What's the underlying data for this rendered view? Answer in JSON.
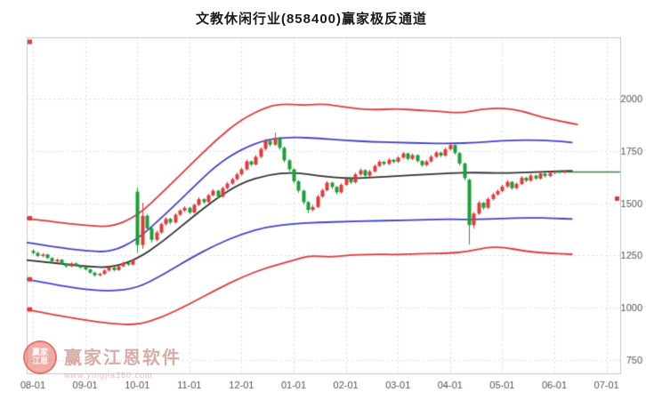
{
  "title": "文教休闲行业(858400)赢家极反通道",
  "watermark": {
    "logo_top": "赢家",
    "logo_bottom": "江恩",
    "brand": "赢家江恩软件",
    "url": "www.yingjia360.com"
  },
  "chart_data": {
    "type": "candlestick",
    "title": "文教休闲行业(858400)赢家极反通道",
    "xlabel": "",
    "ylabel": "",
    "y_axis_side": "right",
    "grid": true,
    "x_ticks": [
      "08-01",
      "09-01",
      "10-01",
      "11-01",
      "12-01",
      "01-01",
      "02-01",
      "03-01",
      "04-01",
      "05-01",
      "06-01",
      "07-01"
    ],
    "y_ticks": [
      2000,
      1750,
      1500,
      1250,
      1000,
      750
    ],
    "ylim": [
      686,
      2293
    ],
    "candles_per_month": 11,
    "candles": [
      [
        1272,
        1280,
        1255,
        1262
      ],
      [
        1262,
        1268,
        1242,
        1248
      ],
      [
        1248,
        1262,
        1243,
        1255
      ],
      [
        1255,
        1258,
        1232,
        1238
      ],
      [
        1238,
        1242,
        1216,
        1222
      ],
      [
        1222,
        1236,
        1217,
        1230
      ],
      [
        1230,
        1233,
        1205,
        1210
      ],
      [
        1210,
        1214,
        1192,
        1198
      ],
      [
        1198,
        1218,
        1194,
        1212
      ],
      [
        1212,
        1216,
        1196,
        1202
      ],
      [
        1202,
        1206,
        1186,
        1192
      ],
      [
        1192,
        1196,
        1177,
        1183
      ],
      [
        1183,
        1187,
        1162,
        1168
      ],
      [
        1168,
        1172,
        1148,
        1155
      ],
      [
        1155,
        1168,
        1150,
        1162
      ],
      [
        1162,
        1184,
        1158,
        1178
      ],
      [
        1178,
        1198,
        1174,
        1192
      ],
      [
        1192,
        1196,
        1174,
        1180
      ],
      [
        1180,
        1204,
        1176,
        1198
      ],
      [
        1198,
        1220,
        1194,
        1214
      ],
      [
        1214,
        1219,
        1200,
        1206
      ],
      [
        1206,
        1234,
        1202,
        1228
      ],
      [
        1555,
        1575,
        1262,
        1300
      ],
      [
        1300,
        1502,
        1282,
        1440
      ],
      [
        1440,
        1448,
        1366,
        1380
      ],
      [
        1380,
        1386,
        1312,
        1325
      ],
      [
        1325,
        1370,
        1318,
        1360
      ],
      [
        1360,
        1408,
        1352,
        1400
      ],
      [
        1400,
        1433,
        1393,
        1425
      ],
      [
        1425,
        1430,
        1398,
        1408
      ],
      [
        1408,
        1452,
        1402,
        1445
      ],
      [
        1445,
        1472,
        1438,
        1465
      ],
      [
        1465,
        1486,
        1458,
        1478
      ],
      [
        1478,
        1482,
        1448,
        1455
      ],
      [
        1455,
        1499,
        1450,
        1492
      ],
      [
        1492,
        1528,
        1486,
        1520
      ],
      [
        1520,
        1524,
        1497,
        1505
      ],
      [
        1505,
        1545,
        1500,
        1538
      ],
      [
        1538,
        1568,
        1532,
        1560
      ],
      [
        1560,
        1564,
        1524,
        1532
      ],
      [
        1532,
        1580,
        1526,
        1572
      ],
      [
        1572,
        1602,
        1566,
        1594
      ],
      [
        1594,
        1623,
        1588,
        1615
      ],
      [
        1615,
        1646,
        1608,
        1638
      ],
      [
        1638,
        1670,
        1632,
        1662
      ],
      [
        1662,
        1709,
        1656,
        1700
      ],
      [
        1700,
        1704,
        1676,
        1685
      ],
      [
        1685,
        1730,
        1680,
        1722
      ],
      [
        1722,
        1768,
        1715,
        1760
      ],
      [
        1760,
        1808,
        1752,
        1798
      ],
      [
        1798,
        1803,
        1770,
        1780
      ],
      [
        1780,
        1838,
        1774,
        1812
      ],
      [
        1812,
        1818,
        1755,
        1765
      ],
      [
        1765,
        1770,
        1695,
        1705
      ],
      [
        1705,
        1710,
        1652,
        1662
      ],
      [
        1662,
        1666,
        1596,
        1605
      ],
      [
        1605,
        1610,
        1550,
        1560
      ],
      [
        1560,
        1565,
        1494,
        1505
      ],
      [
        1505,
        1510,
        1452,
        1468
      ],
      [
        1468,
        1492,
        1460,
        1482
      ],
      [
        1482,
        1540,
        1476,
        1532
      ],
      [
        1532,
        1570,
        1525,
        1562
      ],
      [
        1562,
        1606,
        1556,
        1598
      ],
      [
        1598,
        1602,
        1568,
        1578
      ],
      [
        1578,
        1582,
        1542,
        1552
      ],
      [
        1552,
        1596,
        1546,
        1588
      ],
      [
        1588,
        1626,
        1582,
        1618
      ],
      [
        1618,
        1622,
        1592,
        1600
      ],
      [
        1600,
        1646,
        1594,
        1638
      ],
      [
        1638,
        1666,
        1630,
        1658
      ],
      [
        1658,
        1662,
        1624,
        1632
      ],
      [
        1632,
        1660,
        1626,
        1652
      ],
      [
        1652,
        1686,
        1646,
        1678
      ],
      [
        1678,
        1707,
        1672,
        1698
      ],
      [
        1698,
        1702,
        1680,
        1688
      ],
      [
        1688,
        1716,
        1682,
        1708
      ],
      [
        1708,
        1712,
        1690,
        1698
      ],
      [
        1698,
        1726,
        1692,
        1718
      ],
      [
        1718,
        1746,
        1712,
        1738
      ],
      [
        1738,
        1742,
        1704,
        1712
      ],
      [
        1712,
        1738,
        1706,
        1730
      ],
      [
        1730,
        1734,
        1694,
        1702
      ],
      [
        1702,
        1706,
        1674,
        1682
      ],
      [
        1682,
        1708,
        1676,
        1700
      ],
      [
        1700,
        1730,
        1694,
        1722
      ],
      [
        1722,
        1750,
        1716,
        1742
      ],
      [
        1742,
        1746,
        1720,
        1728
      ],
      [
        1728,
        1766,
        1722,
        1758
      ],
      [
        1758,
        1786,
        1752,
        1778
      ],
      [
        1778,
        1782,
        1732,
        1740
      ],
      [
        1740,
        1744,
        1680,
        1690
      ],
      [
        1690,
        1694,
        1610,
        1620
      ],
      [
        1612,
        1618,
        1302,
        1395
      ],
      [
        1395,
        1458,
        1380,
        1450
      ],
      [
        1450,
        1510,
        1444,
        1502
      ],
      [
        1502,
        1506,
        1468,
        1478
      ],
      [
        1478,
        1528,
        1472,
        1520
      ],
      [
        1520,
        1550,
        1514,
        1542
      ],
      [
        1542,
        1566,
        1536,
        1558
      ],
      [
        1558,
        1588,
        1552,
        1580
      ],
      [
        1580,
        1610,
        1574,
        1602
      ],
      [
        1602,
        1606,
        1564,
        1572
      ],
      [
        1572,
        1600,
        1566,
        1592
      ],
      [
        1592,
        1630,
        1586,
        1622
      ],
      [
        1622,
        1626,
        1600,
        1608
      ],
      [
        1608,
        1640,
        1602,
        1632
      ],
      [
        1632,
        1636,
        1610,
        1618
      ],
      [
        1618,
        1650,
        1612,
        1642
      ],
      [
        1642,
        1646,
        1622,
        1630
      ],
      [
        1630,
        1652,
        1624,
        1645
      ],
      [
        1645,
        1658,
        1639,
        1652
      ],
      [
        1652,
        1656,
        1642,
        1648
      ],
      [
        1648,
        1660,
        1643,
        1655
      ]
    ],
    "channel_lines": {
      "red_lower": {
        "color": "#e23a3a",
        "points": [
          [
            -0.12,
            992
          ],
          [
            0.5,
            962
          ],
          [
            1,
            941
          ],
          [
            1.5,
            924
          ],
          [
            2,
            917
          ],
          [
            2.5,
            956
          ],
          [
            3,
            1018
          ],
          [
            3.5,
            1084
          ],
          [
            4,
            1146
          ],
          [
            4.5,
            1194
          ],
          [
            5,
            1226
          ],
          [
            5.3,
            1250
          ],
          [
            5.7,
            1242
          ],
          [
            6,
            1250
          ],
          [
            6.5,
            1256
          ],
          [
            7,
            1254
          ],
          [
            7.5,
            1259
          ],
          [
            8,
            1261
          ],
          [
            8.3,
            1268
          ],
          [
            8.7,
            1288
          ],
          [
            9,
            1291
          ],
          [
            9.4,
            1272
          ],
          [
            9.8,
            1261
          ],
          [
            10.35,
            1256
          ]
        ]
      },
      "blue_lower": {
        "color": "#4343cf",
        "points": [
          [
            -0.12,
            1136
          ],
          [
            0.5,
            1106
          ],
          [
            1,
            1088
          ],
          [
            1.5,
            1078
          ],
          [
            2,
            1094
          ],
          [
            2.5,
            1158
          ],
          [
            3,
            1234
          ],
          [
            3.5,
            1300
          ],
          [
            4,
            1352
          ],
          [
            4.5,
            1388
          ],
          [
            5,
            1402
          ],
          [
            5.5,
            1408
          ],
          [
            6,
            1412
          ],
          [
            6.5,
            1415
          ],
          [
            7,
            1418
          ],
          [
            7.5,
            1421
          ],
          [
            8,
            1424
          ],
          [
            8.5,
            1421
          ],
          [
            9,
            1427
          ],
          [
            9.5,
            1431
          ],
          [
            10,
            1428
          ],
          [
            10.35,
            1424
          ]
        ]
      },
      "black_mid": {
        "color": "#333333",
        "points": [
          [
            -0.12,
            1228
          ],
          [
            0.5,
            1212
          ],
          [
            1,
            1198
          ],
          [
            1.5,
            1191
          ],
          [
            2,
            1232
          ],
          [
            2.5,
            1318
          ],
          [
            3,
            1422
          ],
          [
            3.5,
            1520
          ],
          [
            4,
            1598
          ],
          [
            4.5,
            1636
          ],
          [
            5,
            1648
          ],
          [
            5.5,
            1630
          ],
          [
            6,
            1618
          ],
          [
            6.5,
            1622
          ],
          [
            7,
            1630
          ],
          [
            7.5,
            1637
          ],
          [
            8,
            1644
          ],
          [
            8.5,
            1647
          ],
          [
            9,
            1643
          ],
          [
            9.5,
            1648
          ],
          [
            10,
            1652
          ],
          [
            10.35,
            1655
          ]
        ]
      },
      "blue_upper": {
        "color": "#4343cf",
        "points": [
          [
            -0.12,
            1312
          ],
          [
            0.5,
            1288
          ],
          [
            1,
            1272
          ],
          [
            1.5,
            1266
          ],
          [
            2,
            1326
          ],
          [
            2.5,
            1438
          ],
          [
            3,
            1558
          ],
          [
            3.5,
            1678
          ],
          [
            4,
            1760
          ],
          [
            4.5,
            1806
          ],
          [
            5,
            1816
          ],
          [
            5.5,
            1810
          ],
          [
            6,
            1800
          ],
          [
            6.5,
            1794
          ],
          [
            7,
            1790
          ],
          [
            7.5,
            1787
          ],
          [
            8,
            1785
          ],
          [
            8.5,
            1790
          ],
          [
            9,
            1799
          ],
          [
            9.5,
            1803
          ],
          [
            10,
            1798
          ],
          [
            10.35,
            1790
          ]
        ]
      },
      "red_upper": {
        "color": "#e23a3a",
        "points": [
          [
            -0.12,
            1428
          ],
          [
            0.5,
            1408
          ],
          [
            1,
            1394
          ],
          [
            1.5,
            1386
          ],
          [
            2,
            1438
          ],
          [
            2.5,
            1555
          ],
          [
            3,
            1678
          ],
          [
            3.5,
            1800
          ],
          [
            4,
            1902
          ],
          [
            4.5,
            1962
          ],
          [
            4.8,
            1975
          ],
          [
            5.2,
            1968
          ],
          [
            5.6,
            1975
          ],
          [
            6,
            1958
          ],
          [
            6.5,
            1946
          ],
          [
            7,
            1952
          ],
          [
            7.4,
            1944
          ],
          [
            7.8,
            1940
          ],
          [
            8.2,
            1930
          ],
          [
            8.6,
            1950
          ],
          [
            9,
            1956
          ],
          [
            9.4,
            1940
          ],
          [
            9.8,
            1908
          ],
          [
            10.2,
            1888
          ],
          [
            10.45,
            1876
          ]
        ]
      }
    },
    "last_price_line": {
      "value": 1650,
      "from_month": 10.02,
      "color": "#2e8b3a"
    },
    "edge_markers": {
      "color": "#e23a3a",
      "left": [
        2272,
        1428,
        1136,
        992
      ],
      "right": [
        1522
      ]
    },
    "colors": {
      "up": "#e23a3a",
      "down": "#18a038",
      "grid": "#dcdcdc",
      "border": "#c8c8c8",
      "axis_text": "#555555",
      "background": "#ffffff"
    }
  }
}
